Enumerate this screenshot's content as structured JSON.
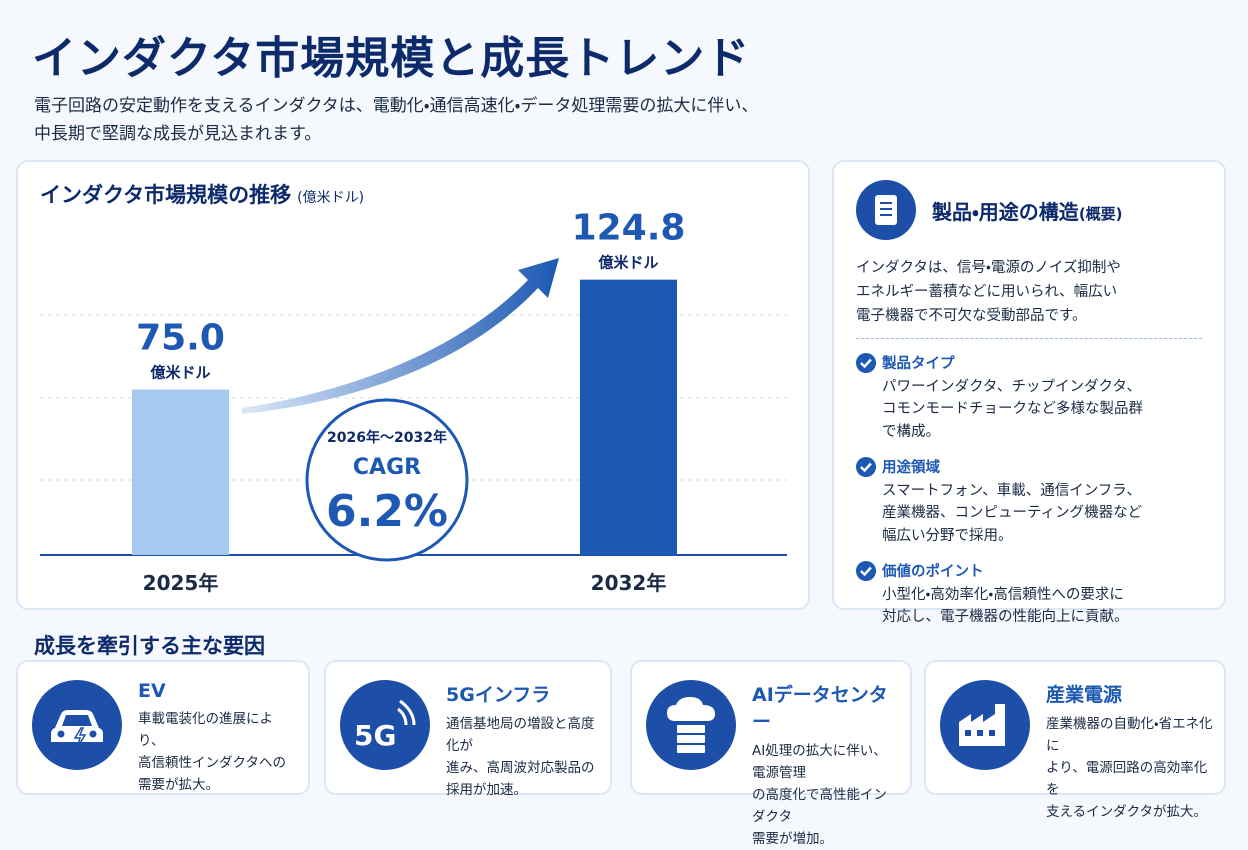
{
  "header": {
    "title": "インダクタ市場規模と成長トレンド",
    "subtitle": [
      "電子回路の安定動作を支えるインダクタは、電動化・通信高速化・データ処理需要の拡大に伴い、",
      "中長期で堅調な成長が見込まれます。"
    ]
  },
  "chart_data": {
    "type": "bar",
    "title": "インダクタ市場規模の推移",
    "unit": "(億米ドル)",
    "categories": [
      "2025年",
      "2032年"
    ],
    "values": [
      75.0,
      124.8
    ],
    "value_labels": [
      "75.0",
      "124.8"
    ],
    "value_unit": "億米ドル",
    "colors": [
      "#a6c9f0",
      "#1d58b3"
    ],
    "ylim": [
      0,
      160
    ],
    "annotation": {
      "period": "2026年〜2032年",
      "label": "CAGR",
      "value": "6.2%"
    }
  },
  "structure": {
    "title": "製品・用途の構造",
    "note": "(概要)",
    "intro": [
      "インダクタは、信号・電源のノイズ抑制や",
      "エネルギー蓄積などに用いられ、幅広い",
      "電子機器で不可欠な受動部品です。"
    ],
    "items": [
      {
        "heading": "製品タイプ",
        "lines": [
          "パワーインダクタ、チップインダクタ、",
          "コモンモードチョークなど多様な製品群",
          "で構成。"
        ]
      },
      {
        "heading": "用途領域",
        "lines": [
          "スマートフォン、車載、通信インフラ、",
          "産業機器、コンピューティング機器など",
          "幅広い分野で採用。"
        ]
      },
      {
        "heading": "価値のポイント",
        "lines": [
          "小型化・高効率化・高信頼性への要求に",
          "対応し、電子機器の性能向上に貢献。"
        ]
      }
    ]
  },
  "drivers": {
    "title": "成長を牽引する主な要因",
    "cards": [
      {
        "title": "EV",
        "lines": [
          "車載電装化の進展により、",
          "高信頼性インダクタへの",
          "需要が拡大。"
        ]
      },
      {
        "title": "5Gインフラ",
        "icon_label": "5G",
        "lines": [
          "通信基地局の増設と高度化が",
          "進み、高周波対応製品の",
          "採用が加速。"
        ]
      },
      {
        "title": "AIデータセンター",
        "lines": [
          "AI処理の拡大に伴い、電源管理",
          "の高度化で高性能インダクタ",
          "需要が増加。"
        ]
      },
      {
        "title": "産業電源",
        "lines": [
          "産業機器の自動化・省エネ化に",
          "より、電源回路の高効率化を",
          "支えるインダクタが拡大。"
        ]
      }
    ]
  }
}
